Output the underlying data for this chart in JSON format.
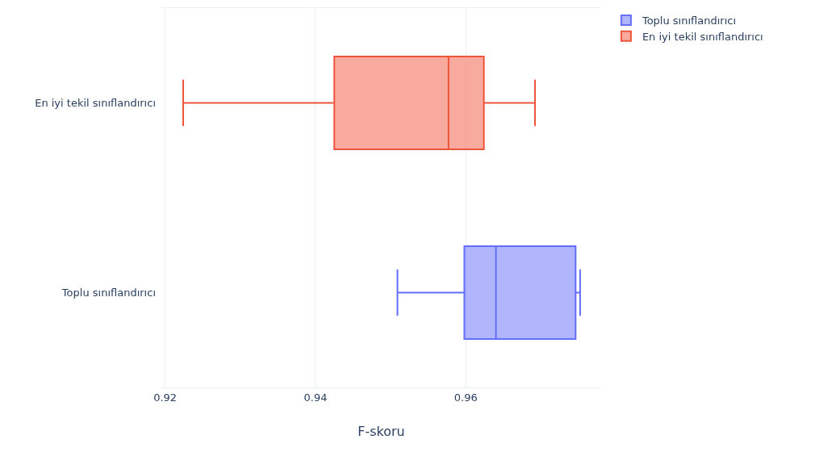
{
  "chart_data": {
    "type": "box",
    "orientation": "horizontal",
    "xlabel": "F-skoru",
    "categories": [
      "En iyi tekil sınıflandırıcı",
      "Toplu sınıflandırıcı"
    ],
    "series": [
      {
        "name": "Toplu sınıflandırıcı",
        "color": "#636efa",
        "boxes": [
          null,
          {
            "low": 0.9509,
            "q1": 0.9598,
            "median": 0.964,
            "q3": 0.9746,
            "high": 0.9752
          }
        ]
      },
      {
        "name": "En iyi tekil sınıflandırıcı",
        "color": "#ef553b",
        "boxes": [
          {
            "low": 0.9224,
            "q1": 0.9425,
            "median": 0.9577,
            "q3": 0.9624,
            "high": 0.9692
          },
          null
        ]
      }
    ],
    "xlim": [
      0.9195,
      0.978
    ],
    "xticks": [
      0.92,
      0.94,
      0.96
    ],
    "grid": "x",
    "legend": "top right"
  }
}
